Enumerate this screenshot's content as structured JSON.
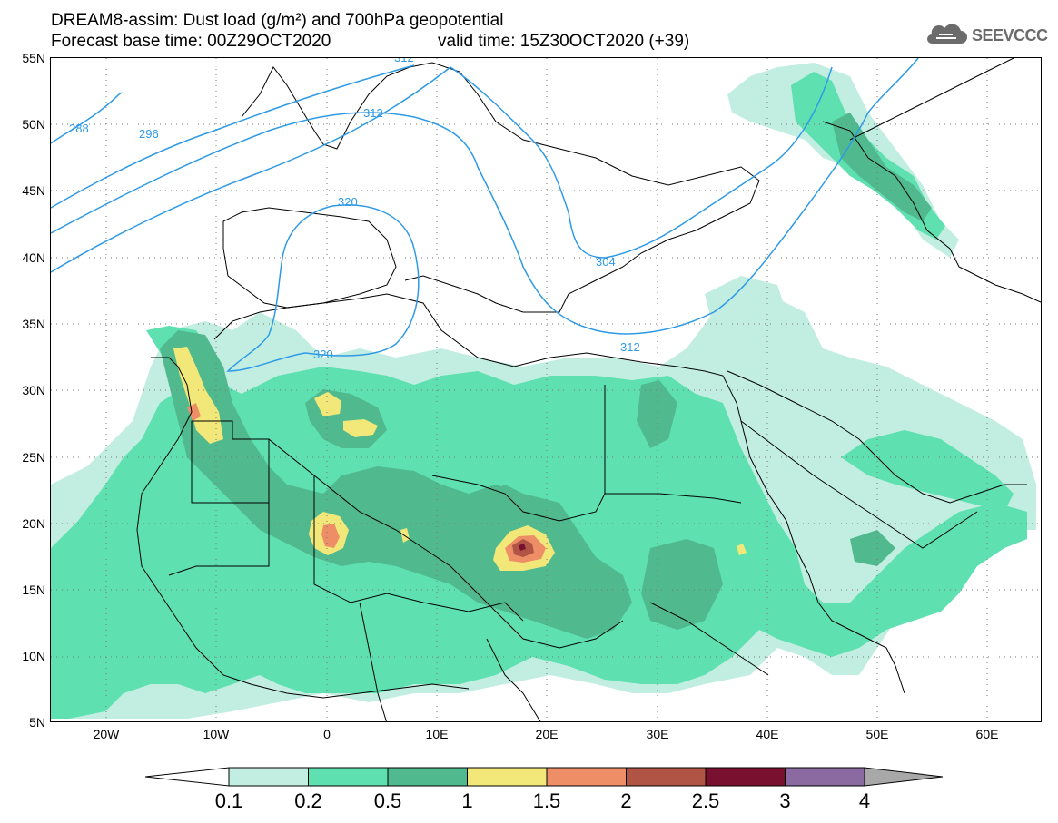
{
  "header": {
    "title_line1": "DREAM8-assim: Dust load (g/m²) and 700hPa geopotential",
    "base_time": "Forecast base time: 00Z29OCT2020",
    "valid_time": "valid time: 15Z30OCT2020 (+39)"
  },
  "logo": {
    "text": "SEEVCCC",
    "icon": "cloud-icon"
  },
  "map": {
    "lat_labels": [
      "55N",
      "50N",
      "45N",
      "40N",
      "35N",
      "30N",
      "25N",
      "20N",
      "15N",
      "10N",
      "5N"
    ],
    "lon_labels": [
      "20W",
      "10W",
      "0",
      "10E",
      "20E",
      "30E",
      "40E",
      "50E",
      "60E"
    ],
    "contour_labels": [
      "288",
      "296",
      "312",
      "320",
      "320",
      "312",
      "312",
      "304"
    ]
  },
  "colorbar": {
    "ticks": [
      "0.1",
      "0.2",
      "0.5",
      "1",
      "1.5",
      "2",
      "2.5",
      "3",
      "4"
    ],
    "colors": [
      "#c2eee2",
      "#5ee0b0",
      "#50b98e",
      "#f2e87a",
      "#ee8e66",
      "#b05545",
      "#7a1030",
      "#8a6aa0"
    ],
    "under_color": "#ffffff",
    "over_color": "#a8a8a8"
  }
}
